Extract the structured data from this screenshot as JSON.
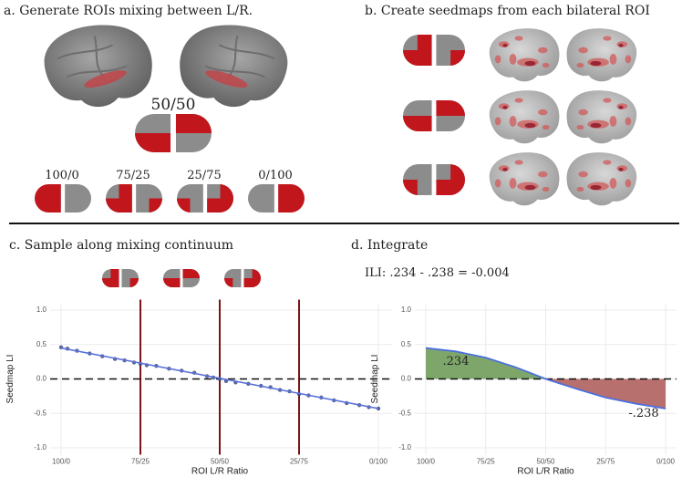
{
  "panels": {
    "a": {
      "title": "a. Generate ROIs mixing between L/R.",
      "center_label": "50/50",
      "labels": [
        "100/0",
        "75/25",
        "25/75",
        "0/100"
      ]
    },
    "b": {
      "title": "b. Create seedmaps from each bilateral ROI"
    },
    "c": {
      "title": "c. Sample along mixing continuum"
    },
    "d": {
      "title": "d. Integrate",
      "equation": "ILI: .234 - .238 = -0.004"
    }
  },
  "chart_data": [
    {
      "type": "scatter",
      "x_label": "ROI L/R Ratio",
      "y_label": "Seedmap LI",
      "x": [
        0,
        2,
        5,
        9,
        13,
        17,
        20,
        23,
        25,
        27,
        30,
        34,
        38,
        42,
        46,
        48,
        50,
        52,
        55,
        59,
        63,
        66,
        69,
        72,
        75,
        78,
        82,
        86,
        90,
        94,
        97,
        100
      ],
      "values": [
        0.46,
        0.44,
        0.41,
        0.37,
        0.33,
        0.29,
        0.27,
        0.24,
        0.22,
        0.2,
        0.19,
        0.15,
        0.12,
        0.09,
        0.04,
        0.02,
        0.0,
        -0.03,
        -0.05,
        -0.07,
        -0.1,
        -0.12,
        -0.16,
        -0.18,
        -0.22,
        -0.24,
        -0.27,
        -0.31,
        -0.35,
        -0.38,
        -0.41,
        -0.43
      ],
      "color": "#3a4a86",
      "fit": {
        "x": [
          0,
          100
        ],
        "values": [
          0.45,
          -0.43
        ],
        "color": "#5d72d8"
      },
      "vlines": [
        25,
        50,
        75
      ],
      "vline_color": "#7a1418",
      "hline": 0,
      "xlim": [
        0,
        100
      ],
      "xticks": [
        {
          "value": 0,
          "label": "100/0"
        },
        {
          "value": 25,
          "label": "75/25"
        },
        {
          "value": 50,
          "label": "50/50"
        },
        {
          "value": 75,
          "label": "25/75"
        },
        {
          "value": 100,
          "label": "0/100"
        }
      ],
      "ylim": [
        -1.1,
        1.1
      ],
      "yticks": [
        {
          "value": -1,
          "label": "-1.0"
        },
        -0.5,
        {
          "value": 0,
          "label": "0.0"
        },
        0.5,
        {
          "value": 1,
          "label": "1.0"
        }
      ],
      "grid": true
    },
    {
      "type": "area",
      "x_label": "ROI L/R Ratio",
      "y_label": "Seedmap LI",
      "x": [
        0,
        12.5,
        25,
        37.5,
        50,
        62.5,
        75,
        87.5,
        100
      ],
      "values": [
        0.45,
        0.4,
        0.31,
        0.17,
        0.0,
        -0.14,
        -0.27,
        -0.36,
        -0.43
      ],
      "color": "#4a6fe0",
      "positive_color": "#7ea66a",
      "negative_color": "#b8706e",
      "annotations": [
        ".234",
        "-.238"
      ],
      "hline": 0,
      "xlim": [
        0,
        100
      ],
      "xticks": [
        {
          "value": 0,
          "label": "100/0"
        },
        {
          "value": 25,
          "label": "75/25"
        },
        {
          "value": 50,
          "label": "50/50"
        },
        {
          "value": 75,
          "label": "25/75"
        },
        {
          "value": 100,
          "label": "0/100"
        }
      ],
      "ylim": [
        -1.1,
        1.1
      ],
      "yticks": [
        {
          "value": -1,
          "label": "-1.0"
        },
        -0.5,
        {
          "value": 0,
          "label": "0.0"
        },
        0.5,
        {
          "value": 1,
          "label": "1.0"
        }
      ],
      "grid": true
    }
  ]
}
